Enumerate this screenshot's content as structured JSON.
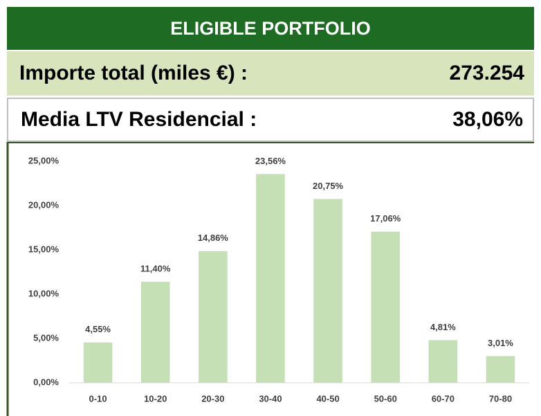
{
  "header": {
    "title": "ELIGIBLE PORTFOLIO"
  },
  "summary": [
    {
      "label": "Importe total (miles €) :",
      "value": "273.254"
    },
    {
      "label": "Media LTV Residencial :",
      "value": "38,06%"
    }
  ],
  "chart_data": {
    "type": "bar",
    "categories": [
      "0-10",
      "10-20",
      "20-30",
      "30-40",
      "40-50",
      "50-60",
      "60-70",
      "70-80"
    ],
    "values": [
      4.55,
      11.4,
      14.86,
      23.56,
      20.75,
      17.06,
      4.81,
      3.01
    ],
    "value_labels": [
      "4,55%",
      "11,40%",
      "14,86%",
      "23,56%",
      "20,75%",
      "17,06%",
      "4,81%",
      "3,01%"
    ],
    "color": "#c5e0b4",
    "ylim": [
      0,
      25
    ],
    "yticks": [
      {
        "value": 0,
        "label": "0,00%"
      },
      {
        "value": 5,
        "label": "5,00%"
      },
      {
        "value": 10,
        "label": "10,00%"
      },
      {
        "value": 15,
        "label": "15,00%"
      },
      {
        "value": 20,
        "label": "20,00%"
      },
      {
        "value": 25,
        "label": "25,00%"
      }
    ],
    "grid": false
  }
}
